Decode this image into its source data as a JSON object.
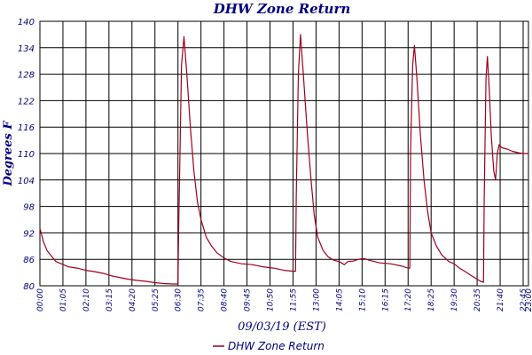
{
  "chart_data": {
    "type": "line",
    "title": "DHW Zone Return",
    "xlabel": "09/03/19 (EST)",
    "ylabel": "Degrees F",
    "ylim": [
      80,
      140
    ],
    "yticks": [
      80,
      86,
      92,
      98,
      104,
      110,
      116,
      122,
      128,
      134,
      140
    ],
    "xlim": [
      "00:00",
      "23:00"
    ],
    "xtick_labels": [
      "00:00",
      "01:05",
      "02:10",
      "03:15",
      "04:20",
      "05:25",
      "06:30",
      "07:35",
      "08:40",
      "09:45",
      "10:50",
      "11:55",
      "13:00",
      "14:05",
      "15:10",
      "16:15",
      "17:20",
      "18:25",
      "19:30",
      "20:35",
      "21:40",
      "22:45",
      "23:00"
    ],
    "grid": true,
    "legend_position": "bottom-center",
    "colors": {
      "series": "#a0001e",
      "grid": "#000000",
      "text": "#000080"
    },
    "series": [
      {
        "name": "DHW Zone Return",
        "points": [
          [
            "00:00",
            93
          ],
          [
            "00:10",
            90
          ],
          [
            "00:20",
            88
          ],
          [
            "00:30",
            87
          ],
          [
            "00:45",
            85.5
          ],
          [
            "01:00",
            85
          ],
          [
            "01:20",
            84.3
          ],
          [
            "01:45",
            84
          ],
          [
            "02:10",
            83.5
          ],
          [
            "02:35",
            83.2
          ],
          [
            "03:00",
            82.8
          ],
          [
            "03:20",
            82.3
          ],
          [
            "03:45",
            81.9
          ],
          [
            "04:10",
            81.5
          ],
          [
            "04:35",
            81.2
          ],
          [
            "05:00",
            81
          ],
          [
            "05:25",
            80.7
          ],
          [
            "05:50",
            80.5
          ],
          [
            "06:15",
            80.4
          ],
          [
            "06:30",
            80.4
          ],
          [
            "06:32",
            93
          ],
          [
            "06:40",
            130
          ],
          [
            "06:47",
            136.5
          ],
          [
            "06:55",
            128
          ],
          [
            "07:05",
            116
          ],
          [
            "07:15",
            106
          ],
          [
            "07:25",
            99
          ],
          [
            "07:35",
            95
          ],
          [
            "07:50",
            91
          ],
          [
            "08:05",
            89
          ],
          [
            "08:20",
            87.5
          ],
          [
            "08:40",
            86.3
          ],
          [
            "09:00",
            85.5
          ],
          [
            "09:30",
            85
          ],
          [
            "10:00",
            84.8
          ],
          [
            "10:30",
            84.3
          ],
          [
            "11:00",
            84
          ],
          [
            "11:30",
            83.5
          ],
          [
            "11:55",
            83.3
          ],
          [
            "12:02",
            83.3
          ],
          [
            "12:04",
            100
          ],
          [
            "12:10",
            128
          ],
          [
            "12:16",
            137
          ],
          [
            "12:24",
            128
          ],
          [
            "12:35",
            115
          ],
          [
            "12:45",
            105
          ],
          [
            "12:55",
            96
          ],
          [
            "13:05",
            91
          ],
          [
            "13:20",
            88
          ],
          [
            "13:35",
            86.5
          ],
          [
            "13:50",
            85.8
          ],
          [
            "14:05",
            85.5
          ],
          [
            "14:20",
            84.8
          ],
          [
            "14:30",
            85.5
          ],
          [
            "14:45",
            85.6
          ],
          [
            "15:00",
            86
          ],
          [
            "15:15",
            86.2
          ],
          [
            "15:30",
            85.8
          ],
          [
            "15:45",
            85.5
          ],
          [
            "16:00",
            85.2
          ],
          [
            "16:30",
            85
          ],
          [
            "17:00",
            84.5
          ],
          [
            "17:20",
            84
          ],
          [
            "17:25",
            84
          ],
          [
            "17:27",
            110
          ],
          [
            "17:33",
            130
          ],
          [
            "17:38",
            134.5
          ],
          [
            "17:45",
            127
          ],
          [
            "17:55",
            114
          ],
          [
            "18:05",
            104
          ],
          [
            "18:15",
            97
          ],
          [
            "18:25",
            92
          ],
          [
            "18:40",
            89
          ],
          [
            "18:55",
            87
          ],
          [
            "19:15",
            85.5
          ],
          [
            "19:30",
            85
          ],
          [
            "19:45",
            84
          ],
          [
            "20:00",
            83.3
          ],
          [
            "20:15",
            82.5
          ],
          [
            "20:35",
            81.5
          ],
          [
            "20:45",
            81
          ],
          [
            "20:53",
            80.8
          ],
          [
            "20:55",
            100
          ],
          [
            "21:00",
            127
          ],
          [
            "21:04",
            132
          ],
          [
            "21:09",
            125
          ],
          [
            "21:15",
            114
          ],
          [
            "21:22",
            106
          ],
          [
            "21:27",
            104
          ],
          [
            "21:32",
            110
          ],
          [
            "21:37",
            112
          ],
          [
            "21:45",
            111.3
          ],
          [
            "22:00",
            111
          ],
          [
            "22:15",
            110.5
          ],
          [
            "22:30",
            110.2
          ],
          [
            "22:45",
            110
          ],
          [
            "23:00",
            110
          ]
        ]
      }
    ]
  }
}
